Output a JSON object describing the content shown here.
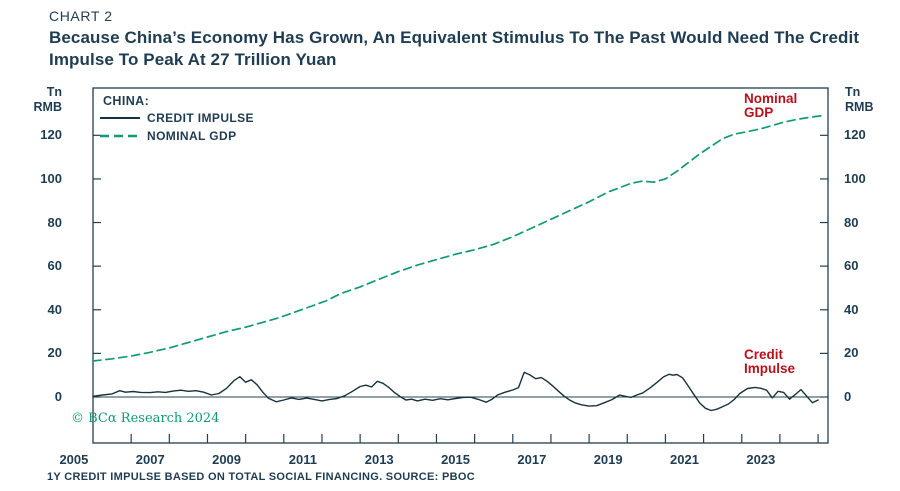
{
  "header": {
    "kicker": "CHART 2",
    "title_line1": "Because China’s Economy Has Grown, An Equivalent Stimulus To The Past Would Need The Credit",
    "title_line2": "Impulse To Peak At 27 Trillion Yuan"
  },
  "legend": {
    "group_label": "CHINA:",
    "items": [
      {
        "label": "CREDIT IMPULSE",
        "style": "solid",
        "color": "#17323e"
      },
      {
        "label": "NOMINAL GDP",
        "style": "dashed",
        "color": "#109a74"
      }
    ]
  },
  "annotations": {
    "nominal_gdp": "Nominal\nGDP",
    "credit_impulse": "Credit\nImpulse"
  },
  "axes": {
    "unit_label_left": "Tn\nRMB",
    "unit_label_right": "Tn\nRMB"
  },
  "watermark": "© BCα Research 2024",
  "footer": {
    "note": "1Y CREDIT IMPULSE BASED ON TOTAL SOCIAL FINANCING. SOURCE: PBOC"
  },
  "colors": {
    "navy": "#1e3c52",
    "line_navy": "#17323e",
    "green": "#109a74",
    "red": "#b5121b",
    "axis": "#24404f"
  },
  "chart_data": {
    "type": "line",
    "title": "Because China’s Economy Has Grown, An Equivalent Stimulus To The Past Would Need The Credit Impulse To Peak At 27 Trillion Yuan",
    "xlabel": "",
    "ylabel": "Tn RMB",
    "grid": false,
    "legend_position": "top-left-inside",
    "x_domain": [
      2005.5,
      2024.76
    ],
    "y_domain": [
      -21.1,
      141.7
    ],
    "y_ticks": [
      0,
      20,
      40,
      60,
      80,
      100,
      120
    ],
    "x_tick_labels": [
      2005,
      2007,
      2009,
      2011,
      2013,
      2015,
      2017,
      2019,
      2021,
      2023
    ],
    "x_minor_ticks": [
      2006.5,
      2007.5,
      2008.5,
      2009.5,
      2010.5,
      2011.5,
      2012.5,
      2013.5,
      2014.5,
      2015.5,
      2016.5,
      2017.5,
      2018.5,
      2019.5,
      2020.5,
      2021.5,
      2022.5,
      2023.5,
      2024.5
    ],
    "zero_line": true,
    "series": [
      {
        "name": "CREDIT IMPULSE",
        "style": "solid",
        "color": "#17323e",
        "width": 1.4,
        "x": [
          2005.5,
          2005.75,
          2006.0,
          2006.2,
          2006.35,
          2006.55,
          2006.75,
          2007.0,
          2007.2,
          2007.4,
          2007.6,
          2007.8,
          2008.0,
          2008.2,
          2008.4,
          2008.6,
          2008.8,
          2009.0,
          2009.2,
          2009.35,
          2009.5,
          2009.65,
          2009.8,
          2009.95,
          2010.1,
          2010.3,
          2010.5,
          2010.7,
          2010.9,
          2011.1,
          2011.3,
          2011.5,
          2011.7,
          2011.9,
          2012.1,
          2012.3,
          2012.5,
          2012.65,
          2012.8,
          2012.95,
          2013.1,
          2013.25,
          2013.4,
          2013.55,
          2013.7,
          2013.85,
          2014.0,
          2014.2,
          2014.4,
          2014.6,
          2014.8,
          2015.0,
          2015.2,
          2015.4,
          2015.6,
          2015.8,
          2015.95,
          2016.1,
          2016.3,
          2016.5,
          2016.65,
          2016.8,
          2016.95,
          2017.1,
          2017.25,
          2017.4,
          2017.55,
          2017.7,
          2017.85,
          2018.0,
          2018.15,
          2018.3,
          2018.5,
          2018.7,
          2018.9,
          2019.1,
          2019.3,
          2019.45,
          2019.6,
          2019.75,
          2019.9,
          2020.1,
          2020.3,
          2020.45,
          2020.6,
          2020.7,
          2020.8,
          2020.95,
          2021.1,
          2021.25,
          2021.4,
          2021.55,
          2021.7,
          2021.85,
          2022.0,
          2022.15,
          2022.3,
          2022.45,
          2022.65,
          2022.85,
          2023.0,
          2023.15,
          2023.3,
          2023.45,
          2023.6,
          2023.75,
          2023.9,
          2024.05,
          2024.2,
          2024.35,
          2024.5
        ],
        "values": [
          0.3,
          0.9,
          1.4,
          2.9,
          2.2,
          2.5,
          2.1,
          2.0,
          2.4,
          2.1,
          2.7,
          3.1,
          2.6,
          2.9,
          2.2,
          0.9,
          1.6,
          4.0,
          7.6,
          9.3,
          6.8,
          7.9,
          5.6,
          2.2,
          -0.6,
          -2.2,
          -1.4,
          -0.4,
          -1.1,
          -0.5,
          -1.1,
          -1.8,
          -1.1,
          -0.7,
          0.6,
          2.6,
          4.8,
          5.4,
          4.6,
          7.2,
          6.3,
          4.4,
          2.0,
          0.2,
          -1.4,
          -1.0,
          -1.8,
          -1.0,
          -1.5,
          -0.8,
          -1.3,
          -0.7,
          -0.2,
          -0.1,
          -1.1,
          -2.4,
          -1.1,
          0.9,
          2.2,
          3.2,
          4.3,
          11.3,
          10.1,
          8.4,
          8.9,
          7.2,
          5.0,
          2.6,
          0.3,
          -1.5,
          -2.8,
          -3.6,
          -4.2,
          -4.0,
          -2.6,
          -1.2,
          0.9,
          0.3,
          -0.2,
          0.9,
          1.8,
          4.2,
          7.0,
          9.2,
          10.4,
          10.0,
          10.3,
          8.8,
          5.0,
          1.0,
          -2.8,
          -5.2,
          -6.2,
          -5.6,
          -4.4,
          -3.2,
          -1.2,
          1.6,
          3.9,
          4.4,
          4.0,
          3.1,
          -0.4,
          2.6,
          2.1,
          -1.0,
          1.1,
          3.4,
          0.4,
          -2.6,
          -1.4
        ]
      },
      {
        "name": "NOMINAL GDP",
        "style": "dashed",
        "color": "#109a74",
        "width": 1.7,
        "x": [
          2005.5,
          2006,
          2006.5,
          2007,
          2007.5,
          2008,
          2008.5,
          2009,
          2009.5,
          2010,
          2010.4,
          2010.8,
          2011.2,
          2011.6,
          2012,
          2012.5,
          2013,
          2013.5,
          2014,
          2014.5,
          2015,
          2015.5,
          2016,
          2016.5,
          2017,
          2017.5,
          2018,
          2018.5,
          2019,
          2019.3,
          2019.6,
          2019.9,
          2020.2,
          2020.5,
          2020.8,
          2021.1,
          2021.4,
          2021.7,
          2022,
          2022.3,
          2022.6,
          2023,
          2023.3,
          2023.6,
          2024,
          2024.3,
          2024.6
        ],
        "values": [
          16.5,
          17.5,
          18.8,
          20.5,
          22.5,
          25,
          27.5,
          30,
          32,
          34.5,
          36.5,
          39,
          41.5,
          44,
          47.5,
          50.5,
          54,
          57.5,
          60.5,
          63,
          65.5,
          67.5,
          70,
          73.5,
          77.5,
          81.5,
          85.5,
          89.5,
          94,
          96,
          98,
          99,
          98.5,
          100,
          103.5,
          107.5,
          111.5,
          115,
          118.5,
          120.5,
          121.5,
          123,
          124.5,
          126,
          127.5,
          128.3,
          129
        ]
      }
    ]
  }
}
